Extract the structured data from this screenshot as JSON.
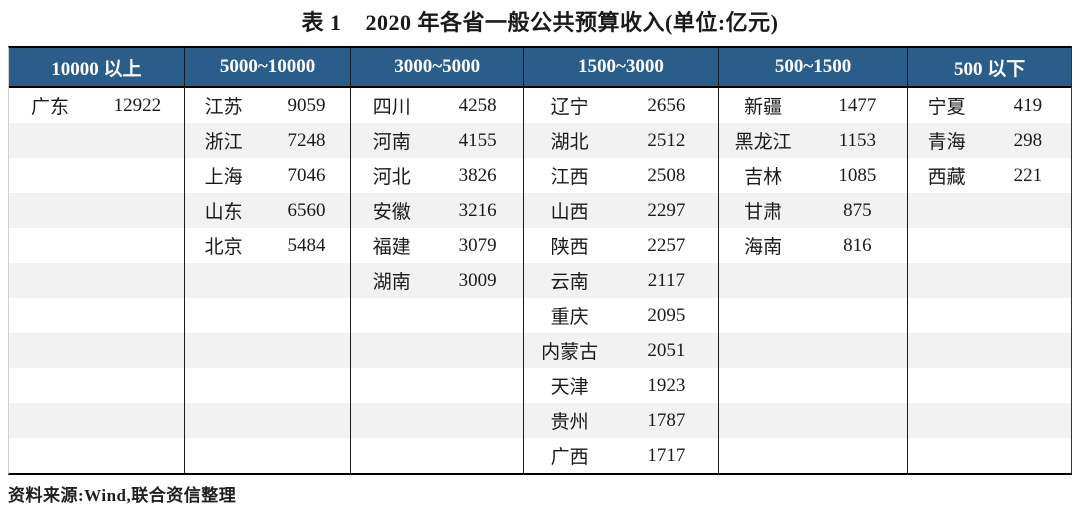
{
  "title": "表 1    2020 年各省一般公共预算收入(单位:亿元)",
  "colors": {
    "header_bg": "#2B5D8B",
    "header_text": "#FFFFFF",
    "stripe": "#F2F2F2",
    "border": "#000000"
  },
  "chart_data": {
    "type": "table",
    "title": "2020 年各省一般公共预算收入(单位:亿元)",
    "unit": "亿元",
    "columns": [
      "10000 以上",
      "5000~10000",
      "3000~5000",
      "1500~3000",
      "500~1500",
      "500 以下"
    ]
  },
  "table": {
    "row_count": 11,
    "groups": [
      {
        "range": "10000 以上",
        "rows": [
          {
            "name": "广东",
            "value": "12922"
          }
        ]
      },
      {
        "range": "5000~10000",
        "rows": [
          {
            "name": "江苏",
            "value": "9059"
          },
          {
            "name": "浙江",
            "value": "7248"
          },
          {
            "name": "上海",
            "value": "7046"
          },
          {
            "name": "山东",
            "value": "6560"
          },
          {
            "name": "北京",
            "value": "5484"
          }
        ]
      },
      {
        "range": "3000~5000",
        "rows": [
          {
            "name": "四川",
            "value": "4258"
          },
          {
            "name": "河南",
            "value": "4155"
          },
          {
            "name": "河北",
            "value": "3826"
          },
          {
            "name": "安徽",
            "value": "3216"
          },
          {
            "name": "福建",
            "value": "3079"
          },
          {
            "name": "湖南",
            "value": "3009"
          }
        ]
      },
      {
        "range": "1500~3000",
        "rows": [
          {
            "name": "辽宁",
            "value": "2656"
          },
          {
            "name": "湖北",
            "value": "2512"
          },
          {
            "name": "江西",
            "value": "2508"
          },
          {
            "name": "山西",
            "value": "2297"
          },
          {
            "name": "陕西",
            "value": "2257"
          },
          {
            "name": "云南",
            "value": "2117"
          },
          {
            "name": "重庆",
            "value": "2095"
          },
          {
            "name": "内蒙古",
            "value": "2051"
          },
          {
            "name": "天津",
            "value": "1923"
          },
          {
            "name": "贵州",
            "value": "1787"
          },
          {
            "name": "广西",
            "value": "1717"
          }
        ]
      },
      {
        "range": "500~1500",
        "rows": [
          {
            "name": "新疆",
            "value": "1477"
          },
          {
            "name": "黑龙江",
            "value": "1153"
          },
          {
            "name": "吉林",
            "value": "1085"
          },
          {
            "name": "甘肃",
            "value": "875"
          },
          {
            "name": "海南",
            "value": "816"
          }
        ]
      },
      {
        "range": "500 以下",
        "rows": [
          {
            "name": "宁夏",
            "value": "419"
          },
          {
            "name": "青海",
            "value": "298"
          },
          {
            "name": "西藏",
            "value": "221"
          }
        ]
      }
    ]
  },
  "footer": {
    "source": "资料来源:Wind,联合资信整理"
  }
}
